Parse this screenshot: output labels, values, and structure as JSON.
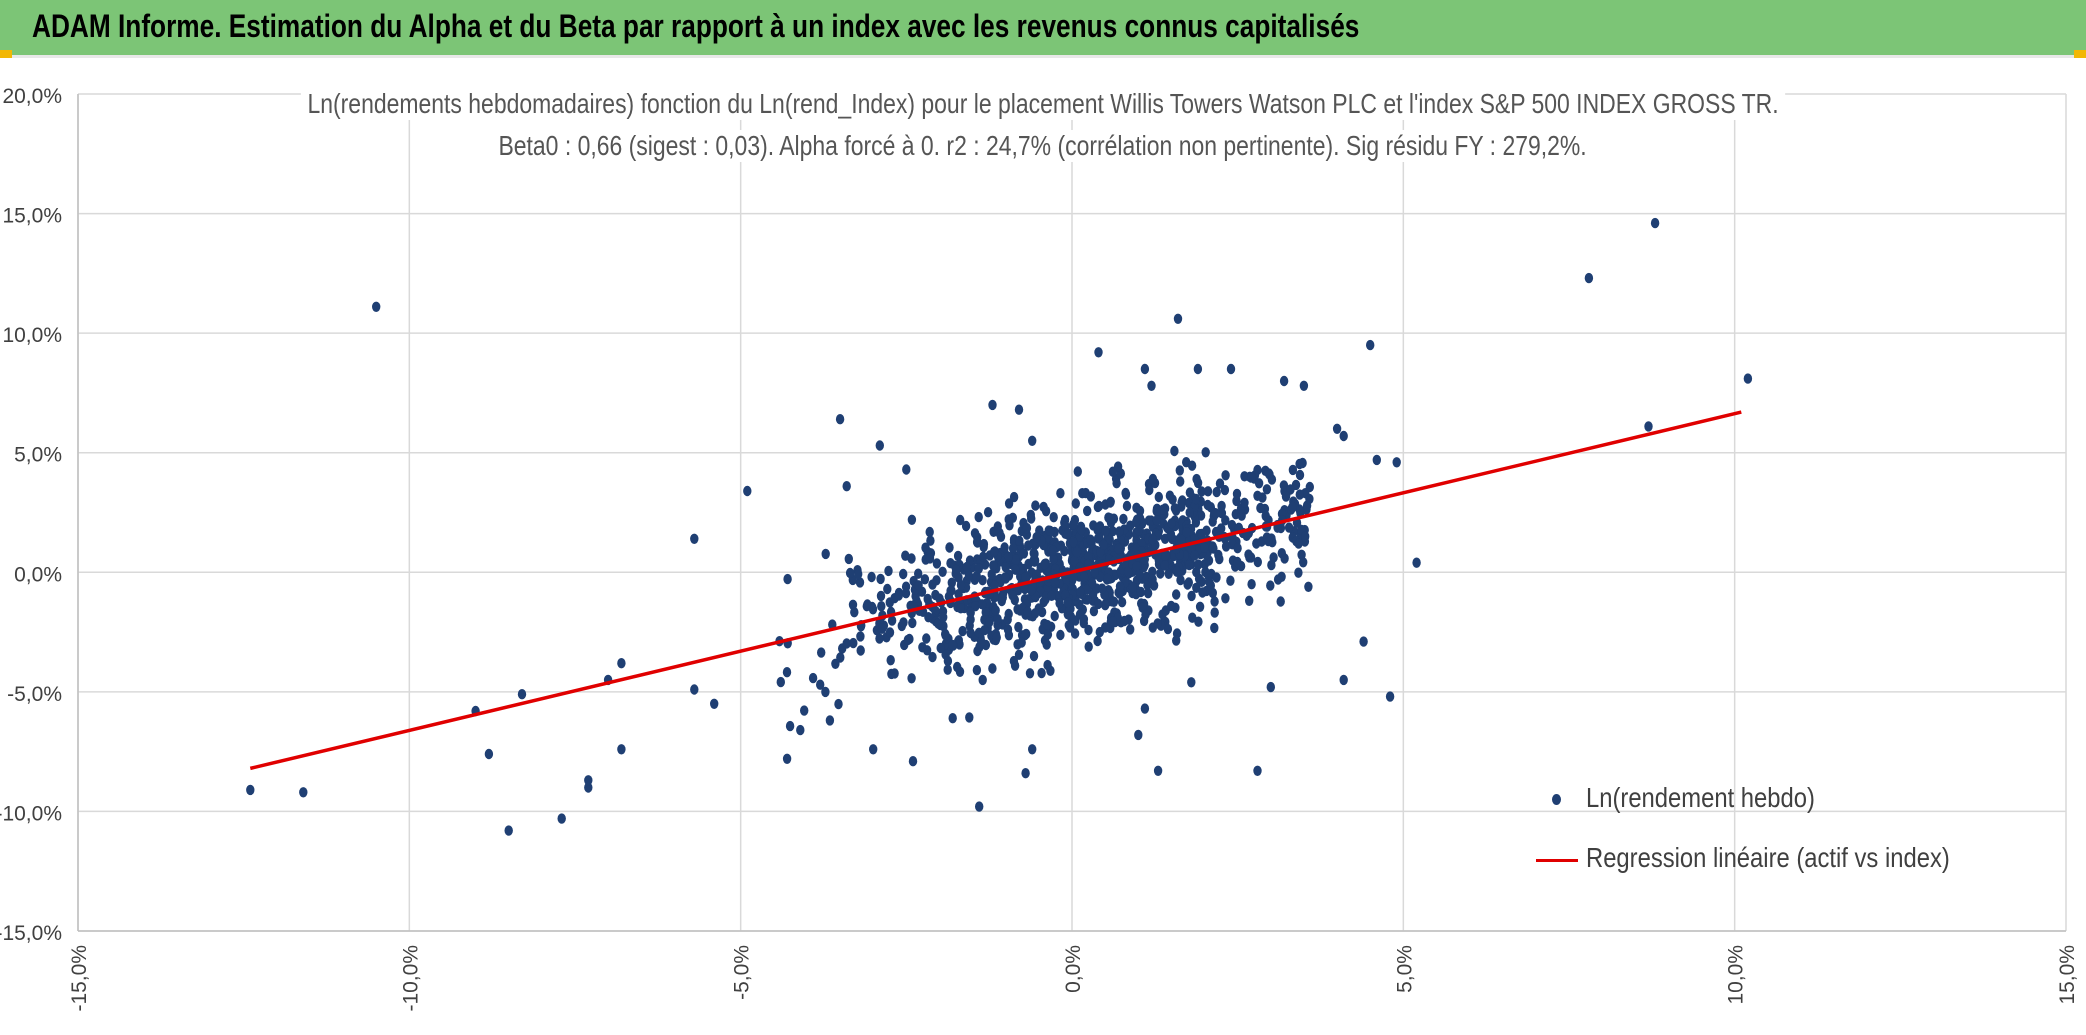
{
  "header": {
    "title": "ADAM Informe. Estimation du Alpha et du Beta par rapport à un index avec les revenus connus capitalisés"
  },
  "colors": {
    "banner": "#7cc576",
    "points": "#1f3f73",
    "regression": "#e00000",
    "grid": "#d9d9d9",
    "text": "#404040"
  },
  "chart_data": {
    "type": "scatter",
    "title_line1": "Ln(rendements hebdomadaires) fonction du Ln(rend_Index) pour le placement Willis Towers Watson PLC et l'index S&P 500 INDEX GROSS TR.",
    "title_line2": "Beta0 : 0,66 (sigest : 0,03). Alpha forcé à 0. r2 : 24,7% (corrélation non pertinente). Sig résidu FY : 279,2%.",
    "xlim": [
      -15,
      15
    ],
    "ylim": [
      -15,
      20
    ],
    "x_ticks": [
      -15,
      -10,
      -5,
      0,
      5,
      10,
      15
    ],
    "y_ticks": [
      -15,
      -10,
      -5,
      0,
      5,
      10,
      15,
      20
    ],
    "x_tick_labels": [
      "-15,0%",
      "-10,0%",
      "-5,0%",
      "0,0%",
      "5,0%",
      "10,0%",
      "15,0%"
    ],
    "y_tick_labels": [
      "-15,0%",
      "-10,0%",
      "-5,0%",
      "0,0%",
      "5,0%",
      "10,0%",
      "15,0%",
      "20,0%"
    ],
    "grid": true,
    "legend_position": "bottom-right",
    "series": [
      {
        "name": "Ln(rendement hebdo)",
        "kind": "scatter",
        "outliers": [
          [
            -10.5,
            11.1
          ],
          [
            7.8,
            12.3
          ],
          [
            8.8,
            14.6
          ],
          [
            10.2,
            8.1
          ],
          [
            8.7,
            6.1
          ],
          [
            1.6,
            10.6
          ],
          [
            0.4,
            9.2
          ],
          [
            4.5,
            9.5
          ],
          [
            -12.4,
            -9.1
          ],
          [
            -11.6,
            -9.2
          ],
          [
            -8.5,
            -10.8
          ],
          [
            -7.7,
            -10.3
          ],
          [
            -8.8,
            -7.6
          ],
          [
            -9.0,
            -5.8
          ],
          [
            -8.3,
            -5.1
          ],
          [
            -7.3,
            -9.0
          ],
          [
            -7.3,
            -8.7
          ],
          [
            -6.8,
            -7.4
          ],
          [
            -6.8,
            -3.8
          ],
          [
            -7.0,
            -4.5
          ],
          [
            -5.7,
            1.4
          ],
          [
            -5.7,
            -4.9
          ],
          [
            -5.4,
            -5.5
          ],
          [
            -4.9,
            3.4
          ],
          [
            -4.3,
            -7.8
          ],
          [
            -4.1,
            -6.6
          ],
          [
            -3.5,
            6.4
          ],
          [
            -3.4,
            3.6
          ],
          [
            -3.0,
            -7.4
          ],
          [
            -2.4,
            -7.9
          ],
          [
            -2.9,
            5.3
          ],
          [
            -1.4,
            -9.8
          ],
          [
            -0.7,
            -8.4
          ],
          [
            -0.6,
            -7.4
          ],
          [
            1.3,
            -8.3
          ],
          [
            2.8,
            -8.3
          ],
          [
            1.0,
            -6.8
          ],
          [
            1.1,
            -5.7
          ],
          [
            5.2,
            0.4
          ],
          [
            4.8,
            -5.2
          ],
          [
            4.4,
            -2.9
          ],
          [
            4.1,
            -4.5
          ],
          [
            4.6,
            4.7
          ],
          [
            4.9,
            4.6
          ],
          [
            3.5,
            7.8
          ],
          [
            3.2,
            8.0
          ],
          [
            2.4,
            8.5
          ],
          [
            1.9,
            8.5
          ],
          [
            1.2,
            7.8
          ],
          [
            1.1,
            8.5
          ],
          [
            -1.2,
            7.0
          ],
          [
            -0.8,
            6.8
          ],
          [
            4.0,
            6.0
          ],
          [
            4.1,
            5.7
          ],
          [
            -2.5,
            4.3
          ],
          [
            -3.8,
            -4.7
          ],
          [
            3.0,
            -4.8
          ],
          [
            1.8,
            -4.6
          ],
          [
            -1.8,
            -6.1
          ],
          [
            -0.6,
            5.5
          ]
        ],
        "cluster": {
          "center": [
            0.2,
            0.2
          ],
          "spread_x": 1.7,
          "spread_y": 2.4,
          "beta": 0.66,
          "count": 1100
        }
      },
      {
        "name": "Regression linéaire (actif vs index)",
        "kind": "line",
        "x": [
          -12.4,
          10.1
        ],
        "y": [
          -8.2,
          6.7
        ]
      }
    ]
  }
}
